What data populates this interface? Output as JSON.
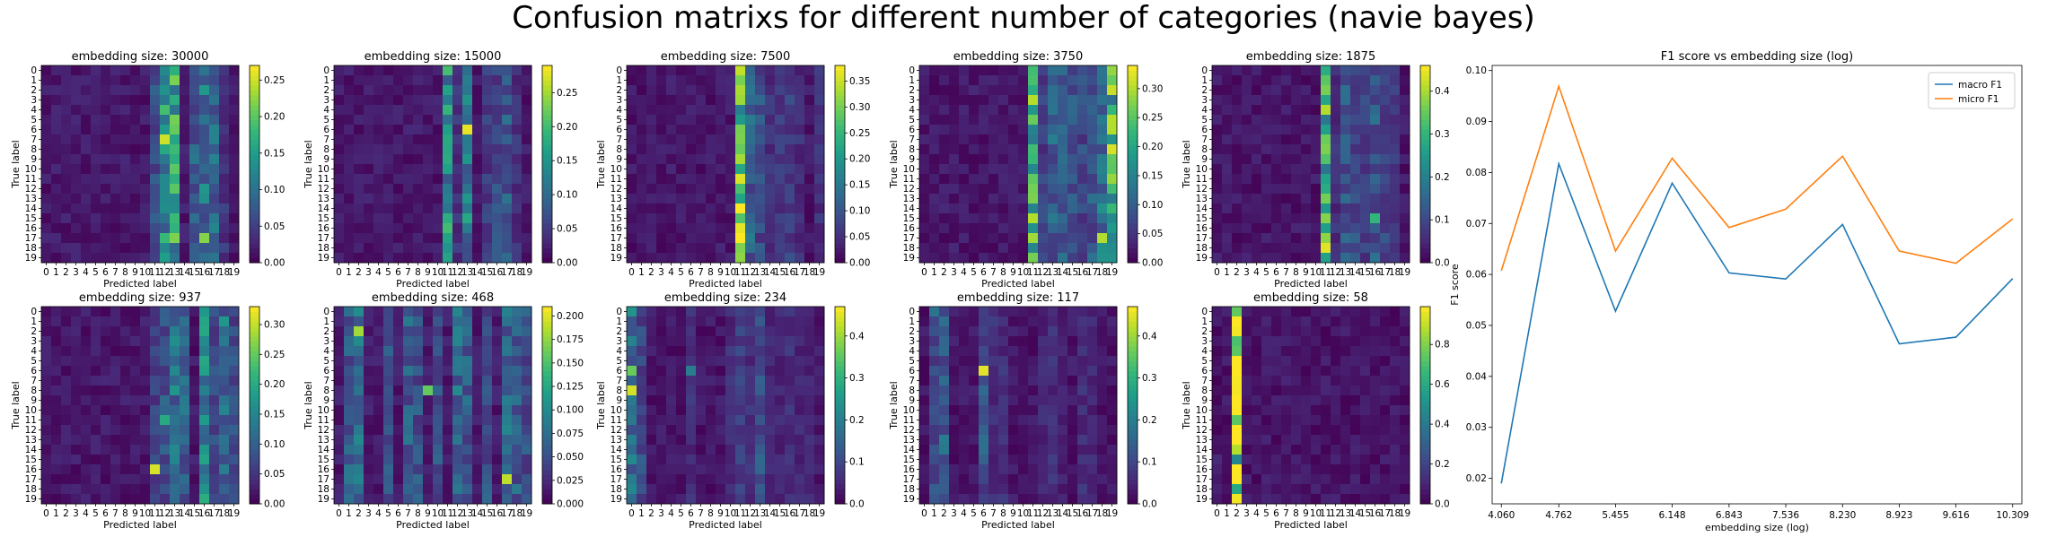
{
  "figure": {
    "suptitle": "Confusion matrixs for different number of categories (navie bayes)"
  },
  "chart_data": [
    {
      "type": "heatmap",
      "title": "embedding size: 30000",
      "xlabel": "Predicted label",
      "ylabel": "True label",
      "labels": [
        "0",
        "1",
        "2",
        "3",
        "4",
        "5",
        "6",
        "7",
        "8",
        "9",
        "10",
        "11",
        "12",
        "13",
        "14",
        "15",
        "16",
        "17",
        "18",
        "19"
      ],
      "colorbar_max": 0.27,
      "colorbar_ticks": [
        "0.00",
        "0.05",
        "0.10",
        "0.15",
        "0.20",
        "0.25"
      ],
      "hot_columns": {
        "11": 0.06,
        "12": 0.13,
        "13": 0.15,
        "15": 0.08,
        "16": 0.1,
        "17": 0.09,
        "18": 0.04
      },
      "peaks": [
        {
          "row": 7,
          "col": 12,
          "value": 0.25
        },
        {
          "row": 17,
          "col": 16,
          "value": 0.22
        },
        {
          "row": 10,
          "col": 13,
          "value": 0.2
        }
      ]
    },
    {
      "type": "heatmap",
      "title": "embedding size: 15000",
      "xlabel": "Predicted label",
      "ylabel": "True label",
      "labels": [
        "0",
        "1",
        "2",
        "3",
        "4",
        "5",
        "6",
        "7",
        "8",
        "9",
        "10",
        "11",
        "12",
        "13",
        "14",
        "15",
        "16",
        "17",
        "18",
        "19"
      ],
      "colorbar_max": 0.29,
      "colorbar_ticks": [
        "0.00",
        "0.05",
        "0.10",
        "0.15",
        "0.20",
        "0.25"
      ],
      "hot_columns": {
        "11": 0.14,
        "12": 0.04,
        "13": 0.12,
        "15": 0.05,
        "16": 0.06,
        "17": 0.08,
        "18": 0.04
      },
      "peaks": [
        {
          "row": 6,
          "col": 13,
          "value": 0.28
        },
        {
          "row": 16,
          "col": 11,
          "value": 0.2
        }
      ]
    },
    {
      "type": "heatmap",
      "title": "embedding size: 7500",
      "xlabel": "Predicted label",
      "ylabel": "True label",
      "labels": [
        "0",
        "1",
        "2",
        "3",
        "4",
        "5",
        "6",
        "7",
        "8",
        "9",
        "10",
        "11",
        "12",
        "13",
        "14",
        "15",
        "16",
        "17",
        "18",
        "19"
      ],
      "colorbar_max": 0.38,
      "colorbar_ticks": [
        "0.00",
        "0.05",
        "0.10",
        "0.15",
        "0.20",
        "0.25",
        "0.30",
        "0.35"
      ],
      "hot_columns": {
        "11": 0.27,
        "12": 0.11,
        "13": 0.09,
        "14": 0.05,
        "15": 0.06,
        "16": 0.07,
        "17": 0.05,
        "19": 0.05
      },
      "peaks": [
        {
          "row": 11,
          "col": 11,
          "value": 0.36
        }
      ]
    },
    {
      "type": "heatmap",
      "title": "embedding size: 3750",
      "xlabel": "Predicted label",
      "ylabel": "True label",
      "labels": [
        "0",
        "1",
        "2",
        "3",
        "4",
        "5",
        "6",
        "7",
        "8",
        "9",
        "10",
        "11",
        "12",
        "13",
        "14",
        "15",
        "16",
        "17",
        "18",
        "19"
      ],
      "colorbar_max": 0.34,
      "colorbar_ticks": [
        "0.00",
        "0.05",
        "0.10",
        "0.15",
        "0.20",
        "0.25",
        "0.30"
      ],
      "hot_columns": {
        "11": 0.21,
        "12": 0.06,
        "13": 0.1,
        "14": 0.09,
        "15": 0.08,
        "16": 0.07,
        "17": 0.09,
        "18": 0.12,
        "19": 0.22
      },
      "peaks": [
        {
          "row": 17,
          "col": 18,
          "value": 0.3
        },
        {
          "row": 8,
          "col": 19,
          "value": 0.32
        }
      ]
    },
    {
      "type": "heatmap",
      "title": "embedding size: 1875",
      "xlabel": "Predicted label",
      "ylabel": "True label",
      "labels": [
        "0",
        "1",
        "2",
        "3",
        "4",
        "5",
        "6",
        "7",
        "8",
        "9",
        "10",
        "11",
        "12",
        "13",
        "14",
        "15",
        "16",
        "17",
        "18",
        "19"
      ],
      "colorbar_max": 0.46,
      "colorbar_ticks": [
        "0.0",
        "0.1",
        "0.2",
        "0.3",
        "0.4"
      ],
      "hot_columns": {
        "11": 0.3,
        "12": 0.06,
        "13": 0.12,
        "14": 0.1,
        "15": 0.08,
        "16": 0.12,
        "17": 0.09,
        "18": 0.07
      },
      "peaks": [
        {
          "row": 18,
          "col": 11,
          "value": 0.44
        },
        {
          "row": 15,
          "col": 16,
          "value": 0.3
        }
      ]
    },
    {
      "type": "heatmap",
      "title": "embedding size: 937",
      "xlabel": "Predicted label",
      "ylabel": "True label",
      "labels": [
        "0",
        "1",
        "2",
        "3",
        "4",
        "5",
        "6",
        "7",
        "8",
        "9",
        "10",
        "11",
        "12",
        "13",
        "14",
        "15",
        "16",
        "17",
        "18",
        "19"
      ],
      "colorbar_max": 0.33,
      "colorbar_ticks": [
        "0.00",
        "0.05",
        "0.10",
        "0.15",
        "0.20",
        "0.25",
        "0.30"
      ],
      "hot_columns": {
        "11": 0.06,
        "12": 0.08,
        "13": 0.12,
        "14": 0.1,
        "16": 0.15,
        "17": 0.07,
        "18": 0.12,
        "19": 0.07
      },
      "peaks": [
        {
          "row": 16,
          "col": 11,
          "value": 0.31
        },
        {
          "row": 11,
          "col": 12,
          "value": 0.2
        }
      ]
    },
    {
      "type": "heatmap",
      "title": "embedding size: 468",
      "xlabel": "Predicted label",
      "ylabel": "True label",
      "labels": [
        "0",
        "1",
        "2",
        "3",
        "4",
        "5",
        "6",
        "7",
        "8",
        "9",
        "10",
        "11",
        "12",
        "13",
        "14",
        "15",
        "16",
        "17",
        "18",
        "19"
      ],
      "colorbar_max": 0.21,
      "colorbar_ticks": [
        "0.000",
        "0.025",
        "0.050",
        "0.075",
        "0.100",
        "0.125",
        "0.150",
        "0.175",
        "0.200"
      ],
      "hot_columns": {
        "1": 0.06,
        "2": 0.08,
        "5": 0.05,
        "7": 0.06,
        "8": 0.05,
        "10": 0.05,
        "12": 0.07,
        "13": 0.06,
        "15": 0.05,
        "17": 0.07,
        "18": 0.06,
        "19": 0.05
      },
      "peaks": [
        {
          "row": 2,
          "col": 2,
          "value": 0.18
        },
        {
          "row": 17,
          "col": 17,
          "value": 0.19
        },
        {
          "row": 8,
          "col": 9,
          "value": 0.16
        }
      ]
    },
    {
      "type": "heatmap",
      "title": "embedding size: 234",
      "xlabel": "Predicted label",
      "ylabel": "True label",
      "labels": [
        "0",
        "1",
        "2",
        "3",
        "4",
        "5",
        "6",
        "7",
        "8",
        "9",
        "10",
        "11",
        "12",
        "13",
        "14",
        "15",
        "16",
        "17",
        "18",
        "19"
      ],
      "colorbar_max": 0.47,
      "colorbar_ticks": [
        "0.0",
        "0.1",
        "0.2",
        "0.3",
        "0.4"
      ],
      "hot_columns": {
        "0": 0.18,
        "1": 0.1,
        "6": 0.06,
        "10": 0.06,
        "11": 0.08,
        "12": 0.06,
        "13": 0.12,
        "14": 0.05,
        "15": 0.05,
        "16": 0.06,
        "17": 0.05,
        "18": 0.05
      },
      "peaks": [
        {
          "row": 8,
          "col": 0,
          "value": 0.44
        },
        {
          "row": 6,
          "col": 0,
          "value": 0.36
        },
        {
          "row": 6,
          "col": 6,
          "value": 0.2
        }
      ]
    },
    {
      "type": "heatmap",
      "title": "embedding size: 117",
      "xlabel": "Predicted label",
      "ylabel": "True label",
      "labels": [
        "0",
        "1",
        "2",
        "3",
        "4",
        "5",
        "6",
        "7",
        "8",
        "9",
        "10",
        "11",
        "12",
        "13",
        "14",
        "15",
        "16",
        "17",
        "18",
        "19"
      ],
      "colorbar_max": 0.47,
      "colorbar_ticks": [
        "0.0",
        "0.1",
        "0.2",
        "0.3",
        "0.4"
      ],
      "hot_columns": {
        "1": 0.1,
        "2": 0.14,
        "6": 0.12,
        "7": 0.06,
        "8": 0.06,
        "12": 0.05,
        "13": 0.06,
        "14": 0.04,
        "16": 0.06,
        "17": 0.05
      },
      "peaks": [
        {
          "row": 6,
          "col": 6,
          "value": 0.45
        },
        {
          "row": 0,
          "col": 1,
          "value": 0.18
        }
      ]
    },
    {
      "type": "heatmap",
      "title": "embedding size: 58",
      "xlabel": "Predicted label",
      "ylabel": "True label",
      "labels": [
        "0",
        "1",
        "2",
        "3",
        "4",
        "5",
        "6",
        "7",
        "8",
        "9",
        "10",
        "11",
        "12",
        "13",
        "14",
        "15",
        "16",
        "17",
        "18",
        "19"
      ],
      "colorbar_max": 0.99,
      "colorbar_ticks": [
        "0.0",
        "0.2",
        "0.4",
        "0.6",
        "0.8"
      ],
      "hot_columns": {
        "2": 0.93
      },
      "peaks": [
        {
          "row": 15,
          "col": 2,
          "value": 0.45
        },
        {
          "row": 18,
          "col": 2,
          "value": 0.6
        },
        {
          "row": 0,
          "col": 1,
          "value": 0.1
        },
        {
          "row": 15,
          "col": 0,
          "value": 0.12
        }
      ]
    },
    {
      "type": "line",
      "title": "F1 score vs embedding size (log)",
      "xlabel": "embedding size (log)",
      "ylabel": "F1 score",
      "x": [
        4.06,
        4.762,
        5.455,
        6.148,
        6.843,
        7.536,
        8.23,
        8.923,
        9.616,
        10.309
      ],
      "x_tick_labels": [
        "4.060",
        "4.762",
        "5.455",
        "6.148",
        "6.843",
        "7.536",
        "8.230",
        "8.923",
        "9.616",
        "10.309"
      ],
      "ylim": [
        0.015,
        0.101
      ],
      "y_ticks": [
        "0.02",
        "0.03",
        "0.04",
        "0.05",
        "0.06",
        "0.07",
        "0.08",
        "0.09",
        "0.10"
      ],
      "legend": "top-right",
      "series": [
        {
          "name": "macro F1",
          "color": "#1f77b4",
          "values": [
            0.019,
            0.0817,
            0.0528,
            0.0779,
            0.0603,
            0.0591,
            0.0698,
            0.0464,
            0.0477,
            0.0592
          ]
        },
        {
          "name": "micro F1",
          "color": "#ff7f0e",
          "values": [
            0.0607,
            0.0969,
            0.0646,
            0.0828,
            0.0692,
            0.0728,
            0.0832,
            0.0646,
            0.0622,
            0.0709
          ]
        }
      ]
    }
  ]
}
